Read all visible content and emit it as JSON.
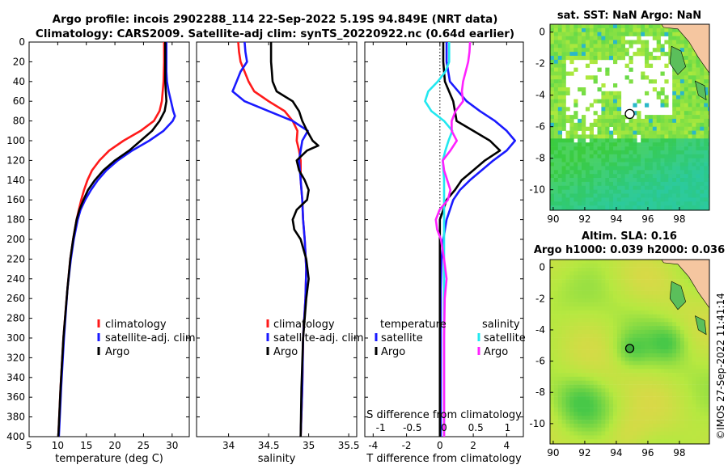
{
  "figure": {
    "title_line1": "Argo profile: incois 2902288_114 22-Sep-2022 5.19S 94.849E (NRT data)",
    "title_line2": "Climatology: CARS2009. Satellite-adj clim: synTS_20220922.nc (0.64d earlier)",
    "watermark": "©IMOS 27-Sep-2022 11:41:14"
  },
  "colors": {
    "climatology": "#ff1a1a",
    "satellite": "#1a1aff",
    "argo": "#000000",
    "sat_salinity": "#22e8f0",
    "argo_salinity": "#ff22ff"
  },
  "chart_data": [
    {
      "id": "temperature",
      "type": "line",
      "xlabel": "temperature (deg C)",
      "ylabel": "",
      "xlim": [
        5,
        33
      ],
      "ylim": [
        400,
        0
      ],
      "xticks": [
        5,
        10,
        15,
        20,
        25,
        30
      ],
      "yticks": [
        0,
        20,
        40,
        60,
        80,
        100,
        120,
        140,
        160,
        180,
        200,
        220,
        240,
        260,
        280,
        300,
        320,
        340,
        360,
        380,
        400
      ],
      "legend": [
        "climatology",
        "satellite-adj. clim",
        "Argo"
      ],
      "series": [
        {
          "name": "climatology",
          "color": "#ff1a1a",
          "depth": [
            0,
            20,
            40,
            60,
            70,
            80,
            90,
            100,
            110,
            120,
            130,
            140,
            150,
            160,
            170,
            180,
            200,
            220,
            250,
            300,
            350,
            400
          ],
          "values": [
            28.6,
            28.6,
            28.5,
            28.2,
            27.8,
            26.8,
            24.5,
            21.5,
            19.0,
            17.3,
            16.0,
            15.2,
            14.6,
            14.1,
            13.7,
            13.3,
            12.7,
            12.2,
            11.7,
            11.0,
            10.5,
            10.1
          ]
        },
        {
          "name": "satellite-adj. clim",
          "color": "#1a1aff",
          "depth": [
            0,
            20,
            30,
            40,
            50,
            60,
            70,
            75,
            80,
            90,
            100,
            110,
            120,
            130,
            140,
            150,
            160,
            170,
            180,
            200,
            220,
            250,
            300,
            350,
            400
          ],
          "values": [
            29.0,
            29.0,
            29.0,
            29.1,
            29.4,
            29.8,
            30.2,
            30.5,
            30.1,
            28.5,
            26.0,
            23.0,
            20.5,
            18.5,
            17.0,
            15.8,
            14.8,
            14.0,
            13.5,
            12.8,
            12.3,
            11.7,
            11.1,
            10.6,
            10.2
          ]
        },
        {
          "name": "Argo",
          "color": "#000000",
          "depth": [
            0,
            20,
            40,
            50,
            60,
            70,
            80,
            90,
            100,
            110,
            120,
            130,
            140,
            150,
            160,
            170,
            180,
            200,
            220,
            250,
            300,
            350,
            400
          ],
          "values": [
            28.8,
            28.8,
            28.8,
            28.9,
            29.0,
            28.7,
            27.8,
            26.5,
            24.5,
            22.5,
            20.0,
            18.0,
            16.5,
            15.3,
            14.5,
            13.8,
            13.3,
            12.7,
            12.2,
            11.7,
            11.0,
            10.5,
            10.1
          ]
        }
      ]
    },
    {
      "id": "salinity",
      "type": "line",
      "xlabel": "salinity",
      "xlim": [
        33.6,
        35.6
      ],
      "ylim": [
        400,
        0
      ],
      "xticks": [
        34,
        34.5,
        35,
        35.5
      ],
      "legend": [
        "climatology",
        "satellite-adj. clim",
        "Argo"
      ],
      "series": [
        {
          "name": "climatology",
          "color": "#ff1a1a",
          "depth": [
            0,
            10,
            20,
            30,
            40,
            50,
            60,
            70,
            80,
            90,
            100,
            110,
            120,
            140,
            160,
            180,
            200,
            230,
            260,
            300,
            350,
            400
          ],
          "values": [
            34.12,
            34.13,
            34.15,
            34.2,
            34.25,
            34.32,
            34.5,
            34.7,
            34.8,
            34.86,
            34.85,
            34.88,
            34.9,
            34.9,
            34.92,
            34.93,
            34.95,
            34.97,
            34.96,
            34.93,
            34.92,
            34.9
          ]
        },
        {
          "name": "satellite-adj. clim",
          "color": "#1a1aff",
          "depth": [
            0,
            10,
            20,
            30,
            40,
            50,
            60,
            70,
            80,
            90,
            100,
            110,
            120,
            140,
            160,
            180,
            200,
            230,
            260,
            300,
            350,
            400
          ],
          "values": [
            34.2,
            34.21,
            34.23,
            34.15,
            34.1,
            34.05,
            34.2,
            34.5,
            34.8,
            34.99,
            34.92,
            34.9,
            34.88,
            34.9,
            34.92,
            34.93,
            34.95,
            34.97,
            34.96,
            34.93,
            34.92,
            34.9
          ]
        },
        {
          "name": "Argo",
          "color": "#000000",
          "depth": [
            0,
            10,
            20,
            30,
            40,
            50,
            55,
            60,
            70,
            80,
            90,
            100,
            105,
            110,
            120,
            130,
            140,
            150,
            160,
            170,
            180,
            190,
            200,
            220,
            240,
            260,
            280,
            300,
            350,
            400
          ],
          "values": [
            34.53,
            34.53,
            34.53,
            34.54,
            34.55,
            34.6,
            34.7,
            34.8,
            34.88,
            34.92,
            34.98,
            35.05,
            35.12,
            34.98,
            34.85,
            34.88,
            34.95,
            35.0,
            34.98,
            34.85,
            34.8,
            34.82,
            34.9,
            34.97,
            35.0,
            34.97,
            34.95,
            34.93,
            34.91,
            34.9
          ]
        }
      ]
    },
    {
      "id": "difference",
      "type": "line",
      "xlabel": "T difference from climatology",
      "xlabel_top": "S difference from climatology",
      "xlim": [
        -4.5,
        5
      ],
      "ylim": [
        400,
        0
      ],
      "xticks": [
        -4,
        -2,
        0,
        2,
        4
      ],
      "xlim_top": [
        -1.25,
        1.25
      ],
      "xticks_top": [
        -1,
        -0.5,
        0,
        0.5,
        1
      ],
      "legend_temperature": {
        "title": "temperature",
        "items": [
          "satellite",
          "Argo"
        ]
      },
      "legend_salinity": {
        "title": "salinity",
        "items": [
          "satellite",
          "Argo"
        ]
      },
      "series": [
        {
          "name": "temperature satellite",
          "color": "#1a1aff",
          "axis": "T",
          "depth": [
            0,
            20,
            40,
            60,
            70,
            80,
            90,
            100,
            110,
            120,
            130,
            140,
            150,
            160,
            170,
            180,
            200,
            220,
            250,
            300,
            400
          ],
          "values": [
            0.4,
            0.4,
            0.6,
            1.6,
            2.4,
            3.3,
            4.0,
            4.5,
            4.0,
            3.2,
            2.5,
            1.8,
            1.2,
            0.8,
            0.6,
            0.4,
            0.2,
            0.1,
            0.05,
            0.05,
            0.05
          ]
        },
        {
          "name": "temperature Argo",
          "color": "#000000",
          "axis": "T",
          "depth": [
            0,
            20,
            40,
            60,
            70,
            80,
            90,
            100,
            110,
            120,
            130,
            140,
            150,
            160,
            170,
            180,
            200,
            220,
            250,
            300,
            400
          ],
          "values": [
            0.2,
            0.2,
            0.3,
            0.8,
            0.9,
            1.0,
            2.0,
            3.0,
            3.6,
            2.7,
            2.0,
            1.3,
            0.9,
            0.4,
            0.2,
            0.0,
            0.0,
            0.0,
            0.0,
            0.0,
            0.0
          ]
        },
        {
          "name": "salinity satellite",
          "color": "#22e8f0",
          "axis": "S",
          "depth": [
            0,
            10,
            20,
            30,
            40,
            50,
            60,
            70,
            80,
            90,
            100,
            110,
            120,
            140,
            160,
            180,
            200,
            230,
            260,
            300,
            400
          ],
          "values": [
            0.08,
            0.08,
            0.08,
            0.02,
            -0.1,
            -0.25,
            -0.3,
            -0.2,
            0.0,
            0.13,
            0.07,
            0.02,
            -0.02,
            0.0,
            0.0,
            0.0,
            0.0,
            0.0,
            0.0,
            0.0,
            0.0
          ]
        },
        {
          "name": "salinity Argo",
          "color": "#ff22ff",
          "axis": "S",
          "depth": [
            0,
            10,
            20,
            30,
            40,
            50,
            60,
            70,
            80,
            90,
            100,
            110,
            120,
            130,
            140,
            150,
            160,
            170,
            180,
            190,
            200,
            220,
            240,
            260,
            300,
            350,
            400
          ],
          "values": [
            0.41,
            0.4,
            0.38,
            0.34,
            0.3,
            0.28,
            0.3,
            0.18,
            0.12,
            0.12,
            0.2,
            0.1,
            -0.02,
            0.0,
            0.05,
            0.1,
            0.06,
            -0.07,
            -0.13,
            -0.11,
            -0.05,
            0.0,
            0.04,
            0.01,
            0.0,
            0.0,
            0.0
          ]
        }
      ]
    },
    {
      "id": "sst_map",
      "type": "heatmap",
      "title": "sat. SST: NaN Argo: NaN",
      "xticks": [
        90,
        92,
        94,
        96,
        98
      ],
      "yticks": [
        0,
        -2,
        -4,
        -6,
        -8,
        -10
      ],
      "xlim": [
        89.8,
        99.9
      ],
      "ylim": [
        -11.3,
        0.5
      ],
      "argo_location": [
        94.849,
        -5.19
      ]
    },
    {
      "id": "sla_map",
      "type": "heatmap",
      "title_line1": "Altim. SLA: 0.16",
      "title_line2": "Argo h1000: 0.039 h2000: 0.036",
      "xticks": [
        90,
        92,
        94,
        96,
        98
      ],
      "yticks": [
        0,
        -2,
        -4,
        -6,
        -8,
        -10
      ],
      "xlim": [
        89.8,
        99.9
      ],
      "ylim": [
        -11.3,
        0.5
      ],
      "argo_location": [
        94.849,
        -5.19
      ]
    }
  ]
}
